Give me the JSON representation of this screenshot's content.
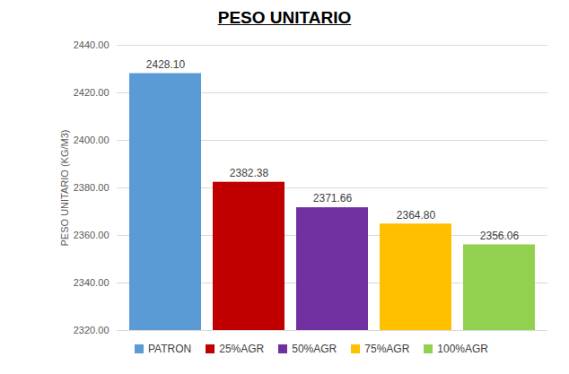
{
  "chart_data": {
    "type": "bar",
    "title": "PESO UNITARIO",
    "y_label": "PESO UNITARIO (KG/M3)",
    "categories": [
      "PATRON",
      "25%AGR",
      "50%AGR",
      "75%AGR",
      "100%AGR"
    ],
    "values": [
      2428.1,
      2382.38,
      2371.66,
      2364.8,
      2356.06
    ],
    "value_labels": [
      "2428.10",
      "2382.38",
      "2371.66",
      "2364.80",
      "2356.06"
    ],
    "colors": [
      "#5B9BD5",
      "#C00000",
      "#7030A0",
      "#FFC000",
      "#92D050"
    ],
    "ylim": [
      2320,
      2440
    ],
    "yticks": [
      {
        "value": 2320,
        "label": "2320.00"
      },
      {
        "value": 2340,
        "label": "2340.00"
      },
      {
        "value": 2360,
        "label": "2360.00"
      },
      {
        "value": 2380,
        "label": "2380.00"
      },
      {
        "value": 2400,
        "label": "2400.00"
      },
      {
        "value": 2420,
        "label": "2420.00"
      },
      {
        "value": 2440,
        "label": "2440.00"
      }
    ],
    "grid": true,
    "data_labels": true,
    "legend": "bottom",
    "tick_labels": "y"
  }
}
